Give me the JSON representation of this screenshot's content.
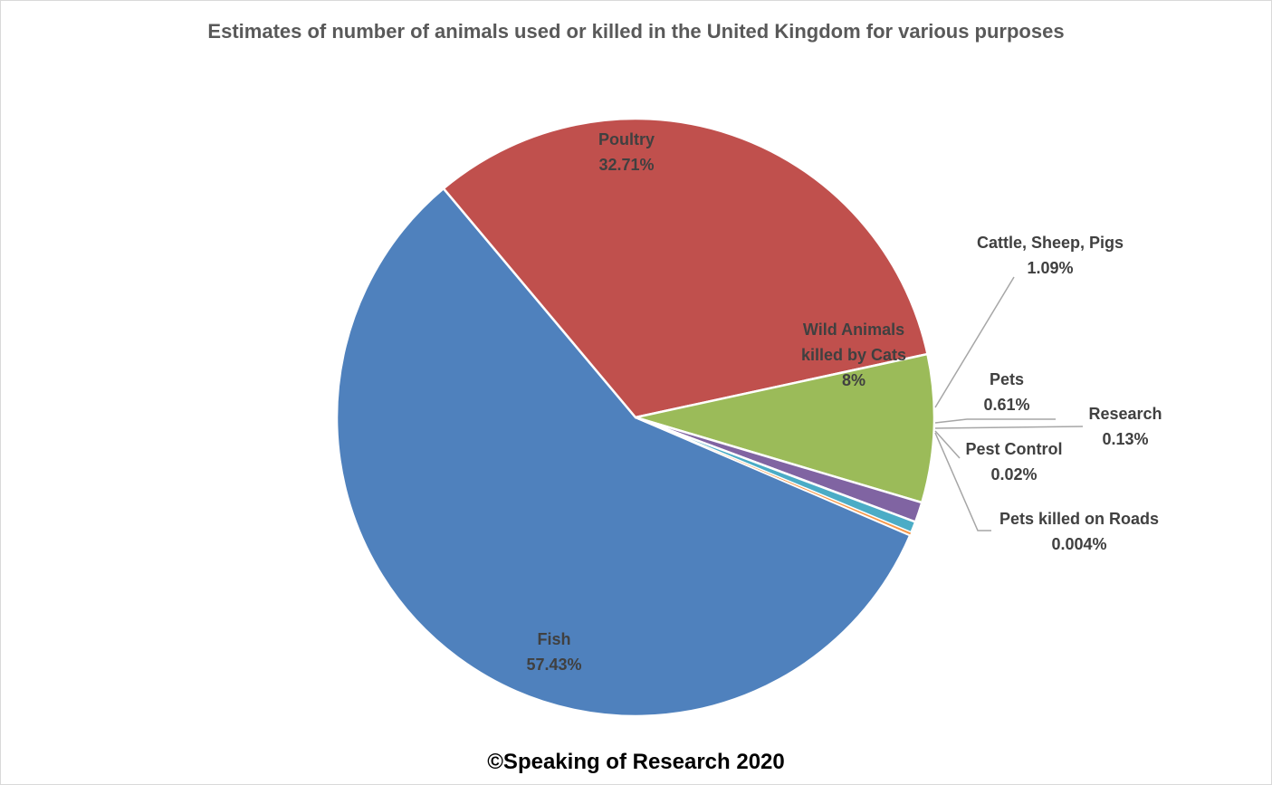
{
  "chart_data": {
    "type": "pie",
    "title": "Estimates of number of animals used or killed in the United Kingdom for various purposes",
    "slices": [
      {
        "label": "Fish",
        "value": 57.43,
        "value_label": "57.43%",
        "color": "#4f81bd"
      },
      {
        "label": "Poultry",
        "value": 32.71,
        "value_label": "32.71%",
        "color": "#c0504d"
      },
      {
        "label": "Wild Animals killed by Cats",
        "label_lines": [
          "Wild Animals",
          "killed by Cats"
        ],
        "value": 8,
        "value_label": "8%",
        "color": "#9bbb59"
      },
      {
        "label": "Cattle, Sheep, Pigs",
        "value": 1.09,
        "value_label": "1.09%",
        "color": "#8064a2"
      },
      {
        "label": "Pets",
        "value": 0.61,
        "value_label": "0.61%",
        "color": "#4bacc6"
      },
      {
        "label": "Research",
        "value": 0.13,
        "value_label": "0.13%",
        "color": "#f79646"
      },
      {
        "label": "Pest Control",
        "value": 0.02,
        "value_label": "0.02%",
        "color": "#2c4d75"
      },
      {
        "label": "Pets killed on Roads",
        "value": 0.004,
        "value_label": "0.004%",
        "color": "#772c2a"
      }
    ],
    "legend": "none"
  },
  "footer": {
    "copyright": "©Speaking of Research 2020"
  },
  "colors": {
    "title_text": "#595959",
    "label_text": "#404040",
    "leader_line": "#a6a6a6",
    "slice_border": "#ffffff"
  }
}
